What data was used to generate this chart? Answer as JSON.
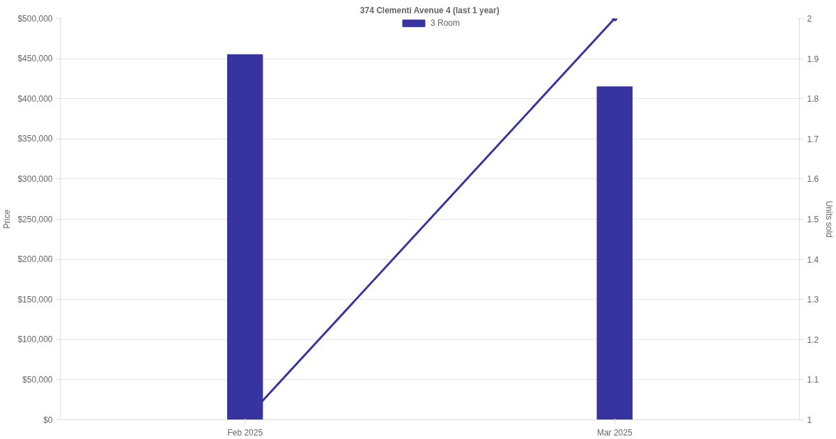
{
  "chart_data": {
    "type": "bar",
    "title": "374 Clementi Avenue 4 (last 1 year)",
    "ylabel": "Price",
    "y2label": "Units sold",
    "categories": [
      "Feb 2025",
      "Mar 2025"
    ],
    "series": [
      {
        "name": "3 Room",
        "color": "#3734a0",
        "values": [
          455000,
          415000
        ]
      },
      {
        "type": "line",
        "axis": "y2",
        "color": "#3734a0",
        "values": [
          1,
          2
        ]
      }
    ],
    "ylim": [
      0,
      500000
    ],
    "yticks": [
      {
        "value": 0,
        "label": "$0"
      },
      {
        "value": 50000,
        "label": "$50,000"
      },
      {
        "value": 100000,
        "label": "$100,000"
      },
      {
        "value": 150000,
        "label": "$150,000"
      },
      {
        "value": 200000,
        "label": "$200,000"
      },
      {
        "value": 250000,
        "label": "$250,000"
      },
      {
        "value": 300000,
        "label": "$300,000"
      },
      {
        "value": 350000,
        "label": "$350,000"
      },
      {
        "value": 400000,
        "label": "$400,000"
      },
      {
        "value": 450000,
        "label": "$450,000"
      },
      {
        "value": 500000,
        "label": "$500,000"
      }
    ],
    "y2lim": [
      1,
      2
    ],
    "y2ticks": [
      1,
      1.1,
      1.2,
      1.3,
      1.4,
      1.5,
      1.6,
      1.7,
      1.8,
      1.9,
      2
    ],
    "grid": "y",
    "legend": "top",
    "marker": "circle",
    "line_style": "solid"
  }
}
